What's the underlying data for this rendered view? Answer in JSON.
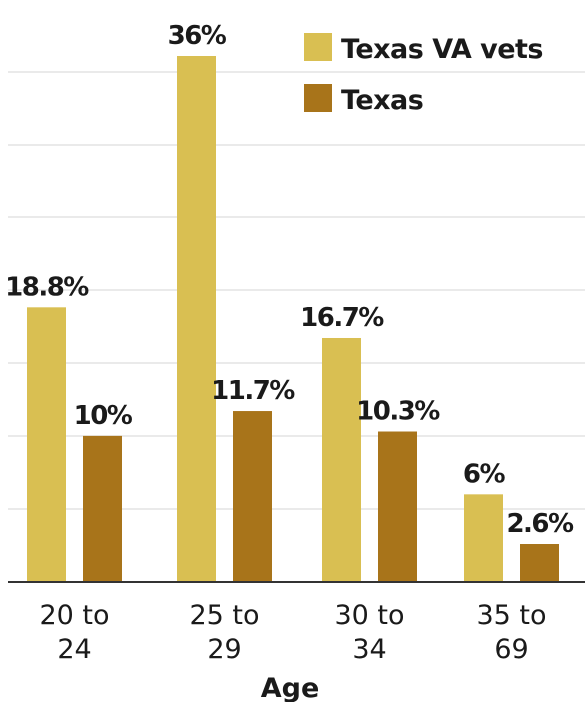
{
  "chart_data": {
    "type": "bar",
    "categories": [
      [
        "20 to",
        "24"
      ],
      [
        "25 to",
        "29"
      ],
      [
        "30 to",
        "34"
      ],
      [
        "35 to",
        "69"
      ]
    ],
    "series": [
      {
        "name": "Texas VA vets",
        "values": [
          18.8,
          36,
          16.7,
          6
        ],
        "labels": [
          "18.8%",
          "36%",
          "16.7%",
          "6%"
        ],
        "color": "#d9bf52"
      },
      {
        "name": "Texas",
        "values": [
          10,
          11.7,
          10.3,
          2.6
        ],
        "labels": [
          "10%",
          "11.7%",
          "10.3%",
          "2.6%"
        ],
        "color": "#a8741a"
      }
    ],
    "xlabel": "Age",
    "ylim": [
      0,
      36
    ],
    "grid": true,
    "legend": "top-right"
  }
}
